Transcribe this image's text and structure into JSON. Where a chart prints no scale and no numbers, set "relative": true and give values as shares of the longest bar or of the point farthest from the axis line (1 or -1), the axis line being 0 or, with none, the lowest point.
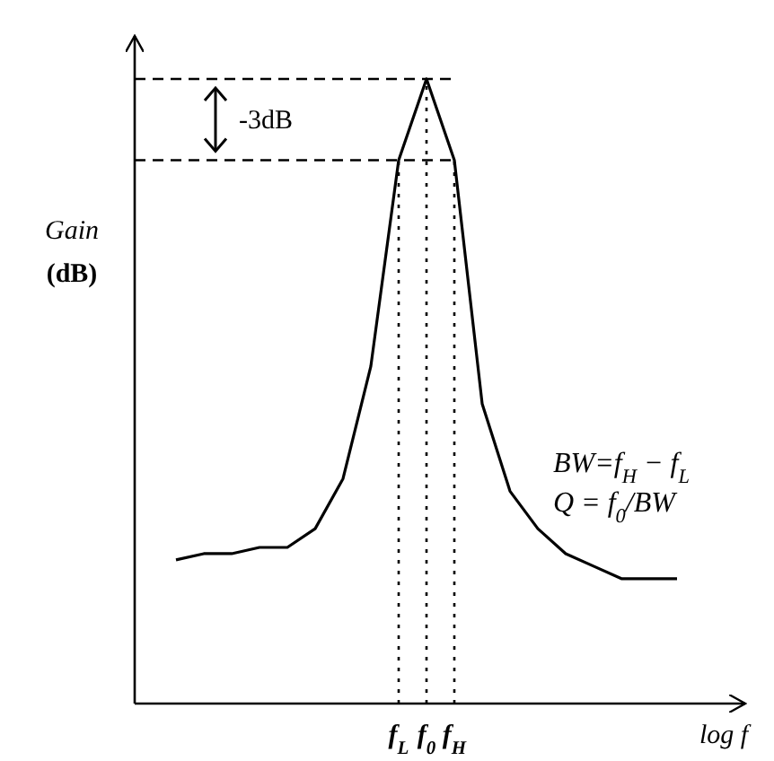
{
  "chart_data": {
    "type": "line",
    "relative": true,
    "xlabel": "log f",
    "ylabel": "Gain\n(dB)",
    "categories": [
      null,
      null,
      null,
      null,
      null,
      null,
      null,
      null,
      "f$_{L}$",
      "f$_{0}$",
      "f$_{H}$",
      null,
      null,
      null,
      null,
      null,
      null,
      null,
      null
    ],
    "marker": "none",
    "line_style": "solid",
    "series": [
      {
        "color": "#000000",
        "values": [
          0.23,
          0.24,
          0.24,
          0.25,
          0.25,
          0.28,
          0.36,
          0.54,
          0.87,
          1,
          0.87,
          0.48,
          0.34,
          0.28,
          0.24,
          0.22,
          0.2,
          0.2,
          0.2
        ]
      }
    ],
    "ref_lines": [
      {
        "axis": "y",
        "value": 1,
        "line_style": "dashed"
      },
      {
        "axis": "y",
        "value": 0.87,
        "line_style": "dashed"
      },
      {
        "axis": "x",
        "value": "f$_{L}$",
        "line_style": "dotted"
      },
      {
        "axis": "x",
        "value": "f$_{0}$",
        "line_style": "dotted"
      },
      {
        "axis": "x",
        "value": "f$_{H}$",
        "line_style": "dotted"
      }
    ],
    "annotations": [
      "-3dB",
      "BW=f$_{H}$ − f$_{L}$",
      "Q = f$_{0}$/BW"
    ]
  }
}
